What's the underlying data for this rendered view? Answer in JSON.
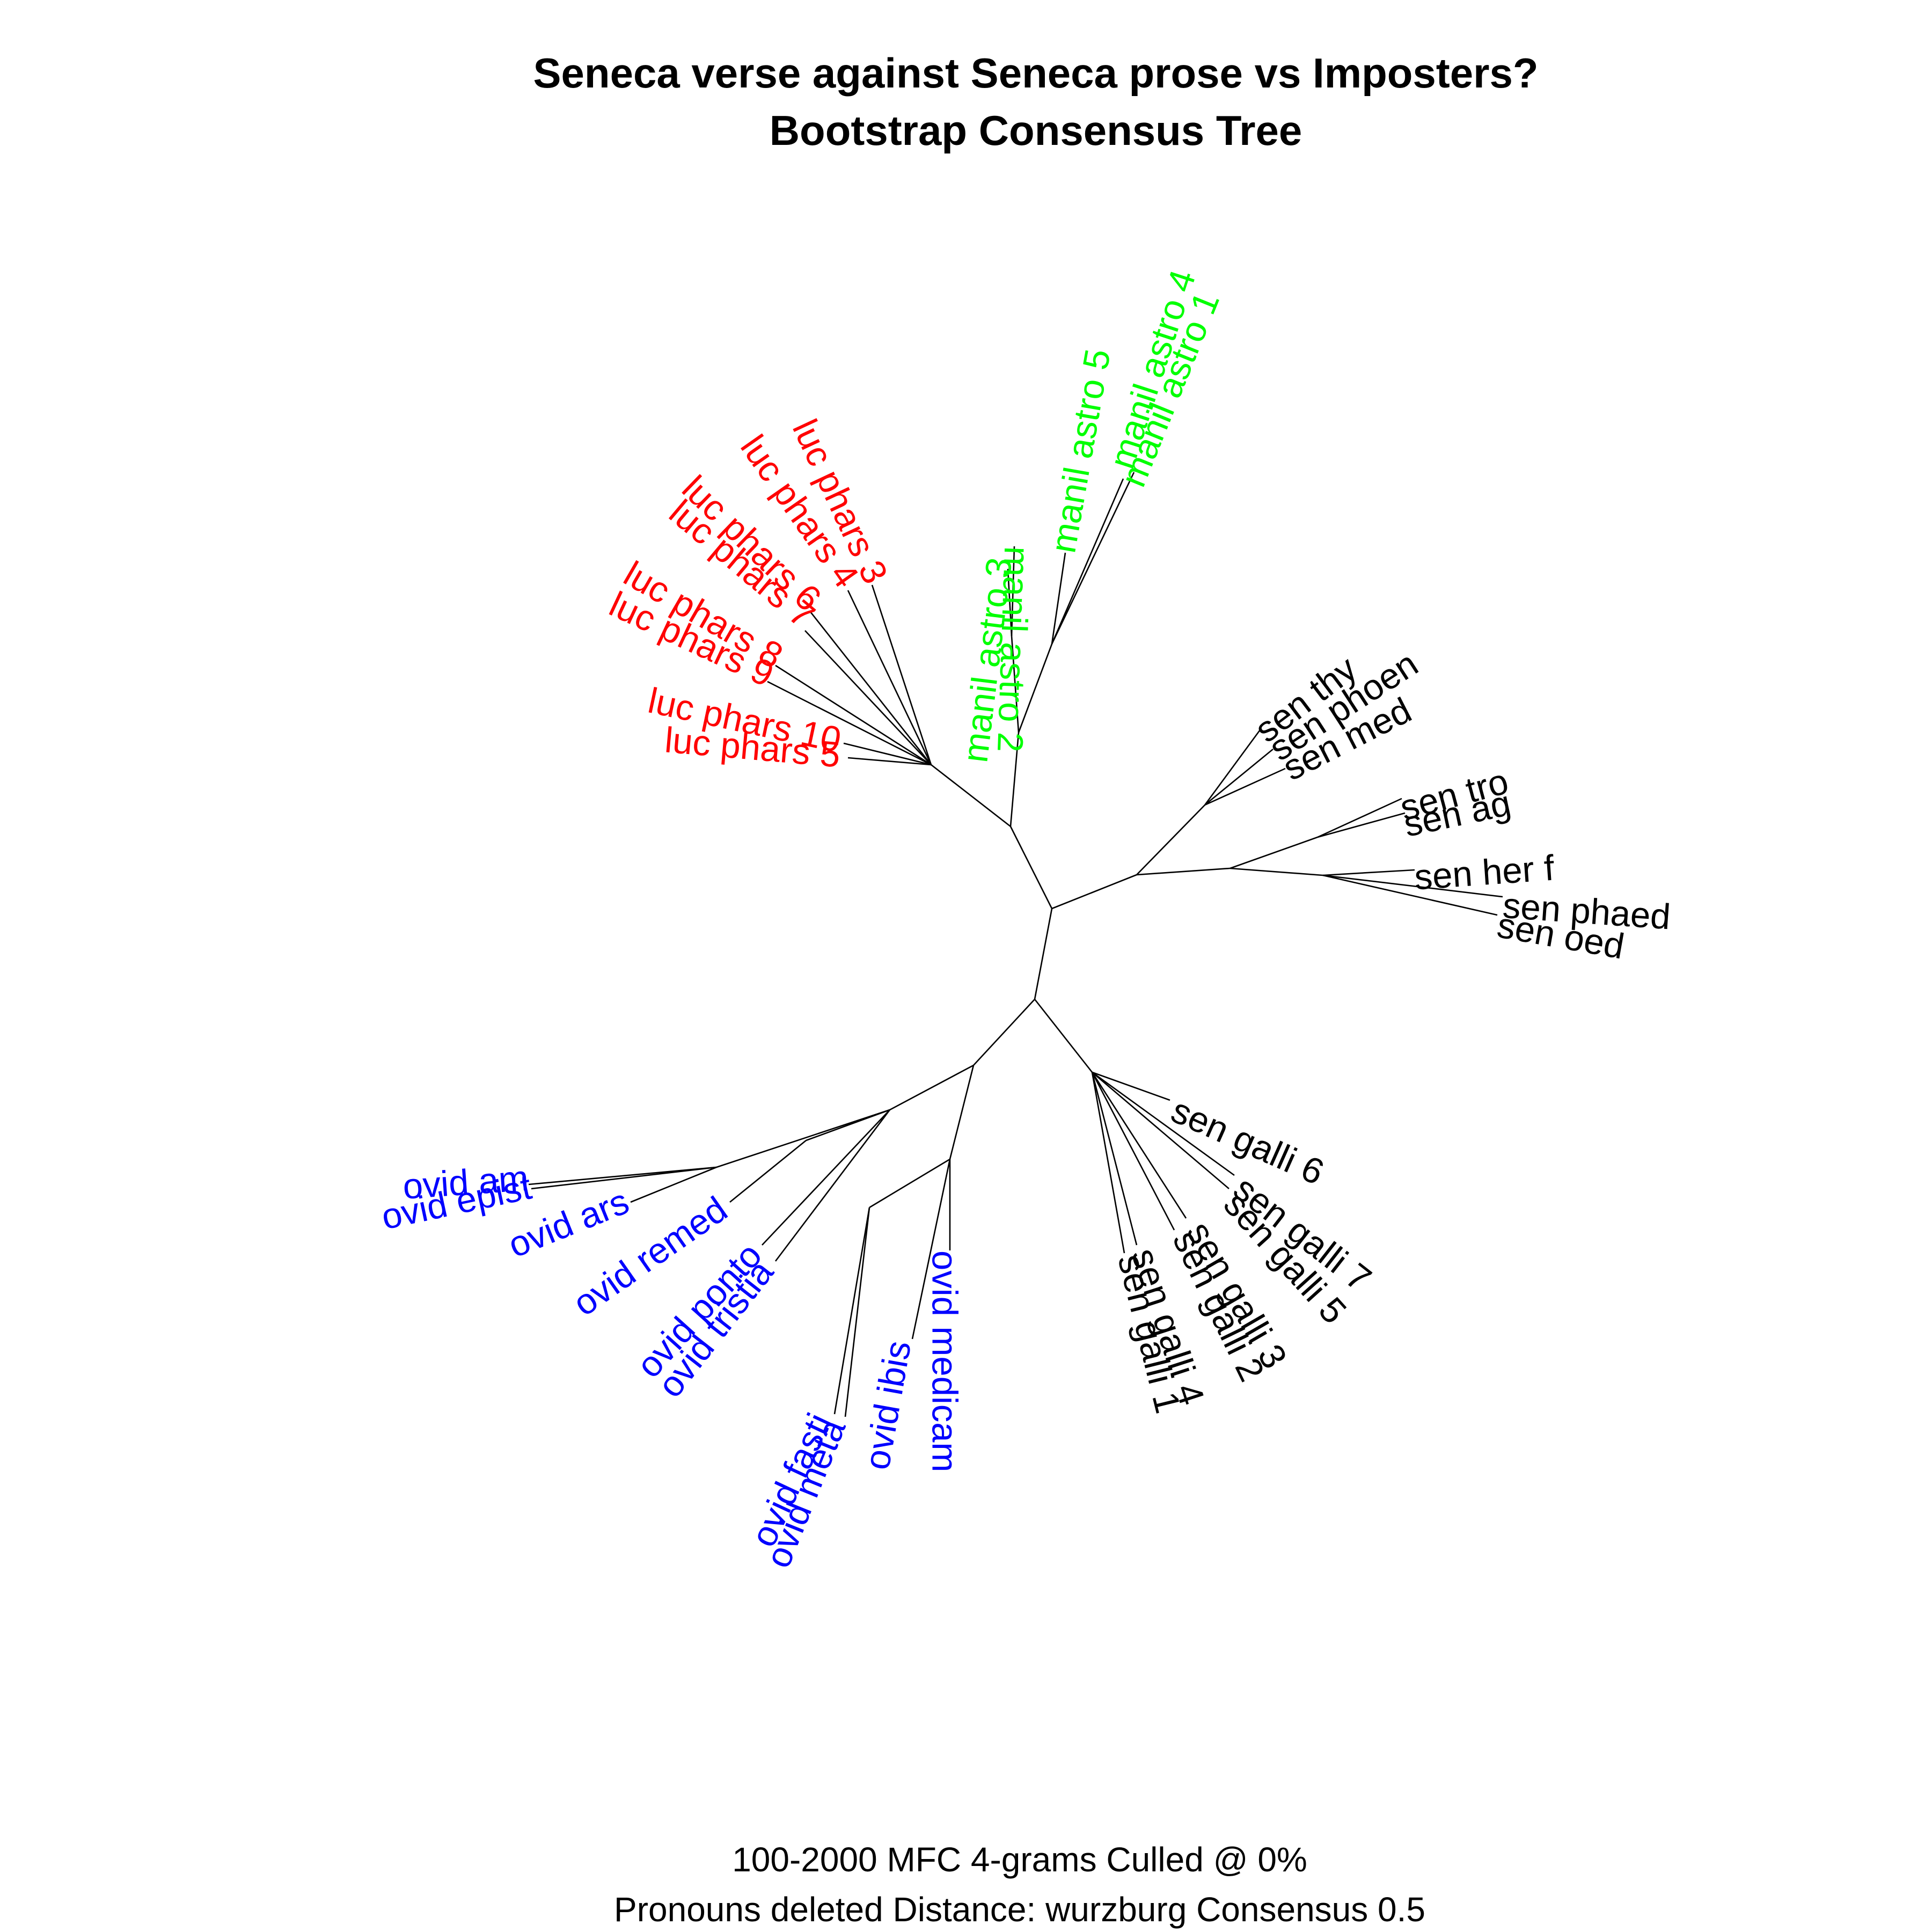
{
  "title": {
    "line1": "Seneca verse against Seneca prose vs Imposters?",
    "line2": "Bootstrap Consensus Tree"
  },
  "footer": {
    "line1": "100-2000 MFC 4-grams Culled @ 0%",
    "line2": "Pronouns deleted Distance: wurzburg Consensus 0.5"
  },
  "colors": {
    "luc": "#ff0000",
    "manil": "#00ff00",
    "ovid": "#0000ff",
    "sen": "#000000",
    "branch": "#000000"
  },
  "tips": [
    {
      "id": "manil_astro_2",
      "label": "manil astro 2",
      "group": "manil"
    },
    {
      "id": "manil_astro_3",
      "label": "manil astro 3",
      "group": "manil"
    },
    {
      "id": "manil_astro_5",
      "label": "manil astro 5",
      "group": "manil"
    },
    {
      "id": "manil_astro_4",
      "label": "manil astro 4",
      "group": "manil"
    },
    {
      "id": "manil_astro_1",
      "label": "manil astro 1",
      "group": "manil"
    },
    {
      "id": "sen_thy",
      "label": "sen thy",
      "group": "sen"
    },
    {
      "id": "sen_phoen",
      "label": "sen phoen",
      "group": "sen"
    },
    {
      "id": "sen_med",
      "label": "sen med",
      "group": "sen"
    },
    {
      "id": "sen_tro",
      "label": "sen tro",
      "group": "sen"
    },
    {
      "id": "sen_ag",
      "label": "sen ag",
      "group": "sen"
    },
    {
      "id": "sen_her_f",
      "label": "sen her f",
      "group": "sen"
    },
    {
      "id": "sen_phaed",
      "label": "sen phaed",
      "group": "sen"
    },
    {
      "id": "sen_oed",
      "label": "sen oed",
      "group": "sen"
    },
    {
      "id": "sen_galli_6",
      "label": "sen galli 6",
      "group": "sen"
    },
    {
      "id": "sen_galli_7",
      "label": "sen galli 7",
      "group": "sen"
    },
    {
      "id": "sen_galli_5",
      "label": "sen galli 5",
      "group": "sen"
    },
    {
      "id": "sen_galli_3",
      "label": "sen galli 3",
      "group": "sen"
    },
    {
      "id": "sen_galli_2",
      "label": "sen galli 2",
      "group": "sen"
    },
    {
      "id": "sen_galli_4",
      "label": "sen galli 4",
      "group": "sen"
    },
    {
      "id": "sen_galli_1",
      "label": "sen galli 1",
      "group": "sen"
    },
    {
      "id": "ovid_medicam",
      "label": "ovid medicam",
      "group": "ovid"
    },
    {
      "id": "ovid_ibis",
      "label": "ovid ibis",
      "group": "ovid"
    },
    {
      "id": "ovid_meta",
      "label": "ovid meta",
      "group": "ovid"
    },
    {
      "id": "ovid_fasti",
      "label": "ovid fasti",
      "group": "ovid"
    },
    {
      "id": "ovid_tristia",
      "label": "ovid tristia",
      "group": "ovid"
    },
    {
      "id": "ovid_ponto",
      "label": "ovid ponto",
      "group": "ovid"
    },
    {
      "id": "ovid_remed",
      "label": "ovid remed",
      "group": "ovid"
    },
    {
      "id": "ovid_ars",
      "label": "ovid ars",
      "group": "ovid"
    },
    {
      "id": "ovid_epist",
      "label": "ovid epist",
      "group": "ovid"
    },
    {
      "id": "ovid_am",
      "label": "ovid am",
      "group": "ovid"
    },
    {
      "id": "luc_phars_5",
      "label": "luc phars 5",
      "group": "luc"
    },
    {
      "id": "luc_phars_10",
      "label": "luc phars 10",
      "group": "luc"
    },
    {
      "id": "luc_phars_9",
      "label": "luc phars 9",
      "group": "luc"
    },
    {
      "id": "luc_phars_8",
      "label": "luc phars 8",
      "group": "luc"
    },
    {
      "id": "luc_phars_7",
      "label": "luc phars 7",
      "group": "luc"
    },
    {
      "id": "luc_phars_6",
      "label": "luc phars 6",
      "group": "luc"
    },
    {
      "id": "luc_phars_4",
      "label": "luc phars 4",
      "group": "luc"
    },
    {
      "id": "luc_phars_3",
      "label": "luc phars 3",
      "group": "luc"
    }
  ]
}
